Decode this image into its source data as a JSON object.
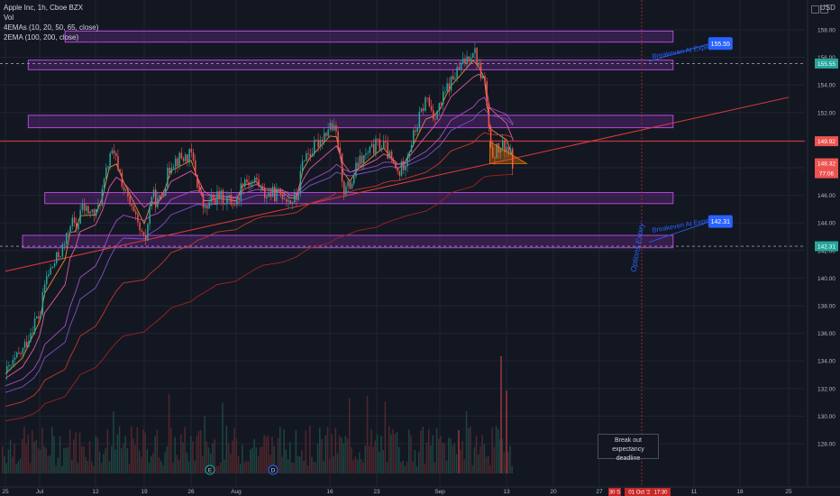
{
  "header": {
    "symbol_line": "Apple Inc, 1h, Cboe BZX",
    "volume_label": "Vol",
    "ema4_label": "4EMAs (10, 20, 50, 65, close)",
    "ema2_label": "2EMA (100, 200, close)",
    "currency": "USD"
  },
  "colors": {
    "background": "#131722",
    "grid": "#1f2430",
    "zone_fill": "#6c2a8c",
    "zone_stroke": "#b04ad6",
    "red_line": "#e03a3a",
    "blue_label": "#2962ff",
    "green_label": "#26a69a",
    "red_label": "#ef5350",
    "up_candle": "#26a69a",
    "down_candle": "#ef5350",
    "triangle": "#f57c00"
  },
  "chart_data": {
    "type": "candlestick",
    "title": "Apple Inc, 1h, Cboe BZX",
    "ylim": [
      126.5,
      159.5
    ],
    "y_ticks": [
      "128.00",
      "130.00",
      "132.00",
      "134.00",
      "136.00",
      "138.00",
      "140.00",
      "142.00",
      "144.00",
      "146.00",
      "148.00",
      "150.00",
      "152.00",
      "154.00",
      "156.00",
      "158.00"
    ],
    "x_ticks": [
      "25",
      "Jul",
      "12",
      "19",
      "26",
      "Aug",
      "16",
      "23",
      "Sep",
      "13",
      "20",
      "27",
      "11",
      "18",
      "25"
    ],
    "price_path": [
      {
        "date": "2021-06-25",
        "price": 133.1
      },
      {
        "date": "2021-06-28",
        "price": 134.8
      },
      {
        "date": "2021-06-30",
        "price": 136.9
      },
      {
        "date": "2021-07-01",
        "price": 137.3
      },
      {
        "date": "2021-07-02",
        "price": 139.9
      },
      {
        "date": "2021-07-06",
        "price": 142.6
      },
      {
        "date": "2021-07-07",
        "price": 144.3
      },
      {
        "date": "2021-07-08",
        "price": 143.4
      },
      {
        "date": "2021-07-09",
        "price": 145.1
      },
      {
        "date": "2021-07-12",
        "price": 144.6
      },
      {
        "date": "2021-07-13",
        "price": 146.5
      },
      {
        "date": "2021-07-14",
        "price": 149.1
      },
      {
        "date": "2021-07-15",
        "price": 148.4
      },
      {
        "date": "2021-07-16",
        "price": 146.4
      },
      {
        "date": "2021-07-19",
        "price": 142.4
      },
      {
        "date": "2021-07-20",
        "price": 146.1
      },
      {
        "date": "2021-07-21",
        "price": 145.4
      },
      {
        "date": "2021-07-22",
        "price": 146.8
      },
      {
        "date": "2021-07-23",
        "price": 148.5
      },
      {
        "date": "2021-07-26",
        "price": 148.9
      },
      {
        "date": "2021-07-27",
        "price": 146.6
      },
      {
        "date": "2021-07-28",
        "price": 144.8
      },
      {
        "date": "2021-07-29",
        "price": 145.6
      },
      {
        "date": "2021-07-30",
        "price": 145.9
      },
      {
        "date": "2021-08-02",
        "price": 145.5
      },
      {
        "date": "2021-08-03",
        "price": 147.3
      },
      {
        "date": "2021-08-04",
        "price": 146.9
      },
      {
        "date": "2021-08-05",
        "price": 147.1
      },
      {
        "date": "2021-08-06",
        "price": 146.1
      },
      {
        "date": "2021-08-09",
        "price": 146.1
      },
      {
        "date": "2021-08-10",
        "price": 145.6
      },
      {
        "date": "2021-08-11",
        "price": 145.8
      },
      {
        "date": "2021-08-12",
        "price": 148.9
      },
      {
        "date": "2021-08-13",
        "price": 149.1
      },
      {
        "date": "2021-08-16",
        "price": 151.1
      },
      {
        "date": "2021-08-17",
        "price": 150.2
      },
      {
        "date": "2021-08-18",
        "price": 146.4
      },
      {
        "date": "2021-08-19",
        "price": 146.7
      },
      {
        "date": "2021-08-20",
        "price": 148.2
      },
      {
        "date": "2021-08-23",
        "price": 149.7
      },
      {
        "date": "2021-08-24",
        "price": 149.6
      },
      {
        "date": "2021-08-25",
        "price": 148.4
      },
      {
        "date": "2021-08-26",
        "price": 147.5
      },
      {
        "date": "2021-08-27",
        "price": 148.6
      },
      {
        "date": "2021-08-30",
        "price": 153.1
      },
      {
        "date": "2021-08-31",
        "price": 151.8
      },
      {
        "date": "2021-09-01",
        "price": 152.5
      },
      {
        "date": "2021-09-02",
        "price": 153.6
      },
      {
        "date": "2021-09-03",
        "price": 154.3
      },
      {
        "date": "2021-09-07",
        "price": 156.7
      },
      {
        "date": "2021-09-08",
        "price": 155.1
      },
      {
        "date": "2021-09-09",
        "price": 154.1
      },
      {
        "date": "2021-09-10",
        "price": 149.0
      },
      {
        "date": "2021-09-13",
        "price": 149.6
      },
      {
        "date": "2021-09-14",
        "price": 148.1
      }
    ],
    "zones": [
      {
        "low": 157.1,
        "high": 157.9,
        "from": "2021-07-06",
        "to": "2021-10-07"
      },
      {
        "low": 155.1,
        "high": 155.8,
        "from": "2021-06-29",
        "to": "2021-10-07"
      },
      {
        "low": 150.9,
        "high": 151.8,
        "from": "2021-06-29",
        "to": "2021-10-07"
      },
      {
        "low": 145.4,
        "high": 146.2,
        "from": "2021-07-02",
        "to": "2021-10-07"
      },
      {
        "low": 142.2,
        "high": 143.1,
        "from": "2021-06-28",
        "to": "2021-10-07"
      }
    ],
    "horizontal_lines": [
      {
        "price": 155.55,
        "style": "dashed"
      },
      {
        "price": 149.92,
        "style": "solid-red"
      },
      {
        "price": 142.31,
        "style": "dashed"
      }
    ],
    "vertical_line_date": "2021-10-01",
    "trendline": [
      {
        "date": "2021-06-25",
        "price": 140.5
      },
      {
        "date": "2021-10-26",
        "price": 153.1
      }
    ],
    "price_labels": [
      {
        "text": "155.55",
        "price": 155.55,
        "color": "green"
      },
      {
        "text": "149.92",
        "price": 149.92,
        "color": "red"
      },
      {
        "text": "148.32",
        "price": 148.32,
        "color": "red"
      },
      {
        "text": "77:06",
        "price": 147.6,
        "color": "red"
      },
      {
        "text": "142.31",
        "price": 142.31,
        "color": "green"
      }
    ],
    "annotations": [
      {
        "text": "Breakeven At Expiry",
        "price": 155.9,
        "date": "2021-10-01"
      },
      {
        "text": "Breakeven At Expiry",
        "price": 143.3,
        "date": "2021-10-01"
      },
      {
        "text": "Options Expiry",
        "price": 143.5,
        "date": "2021-10-01"
      },
      {
        "text": "155.55",
        "price": 157.0,
        "date": "2021-10-14"
      },
      {
        "text": "142.31",
        "price": 144.1,
        "date": "2021-10-14"
      }
    ],
    "x_markers": [
      "30 S",
      "01 Oct '21",
      "17:30"
    ],
    "event_markers": [
      "E",
      "D"
    ]
  },
  "tooltip": {
    "line1": "Break out expectancy",
    "line2": "deadline"
  }
}
